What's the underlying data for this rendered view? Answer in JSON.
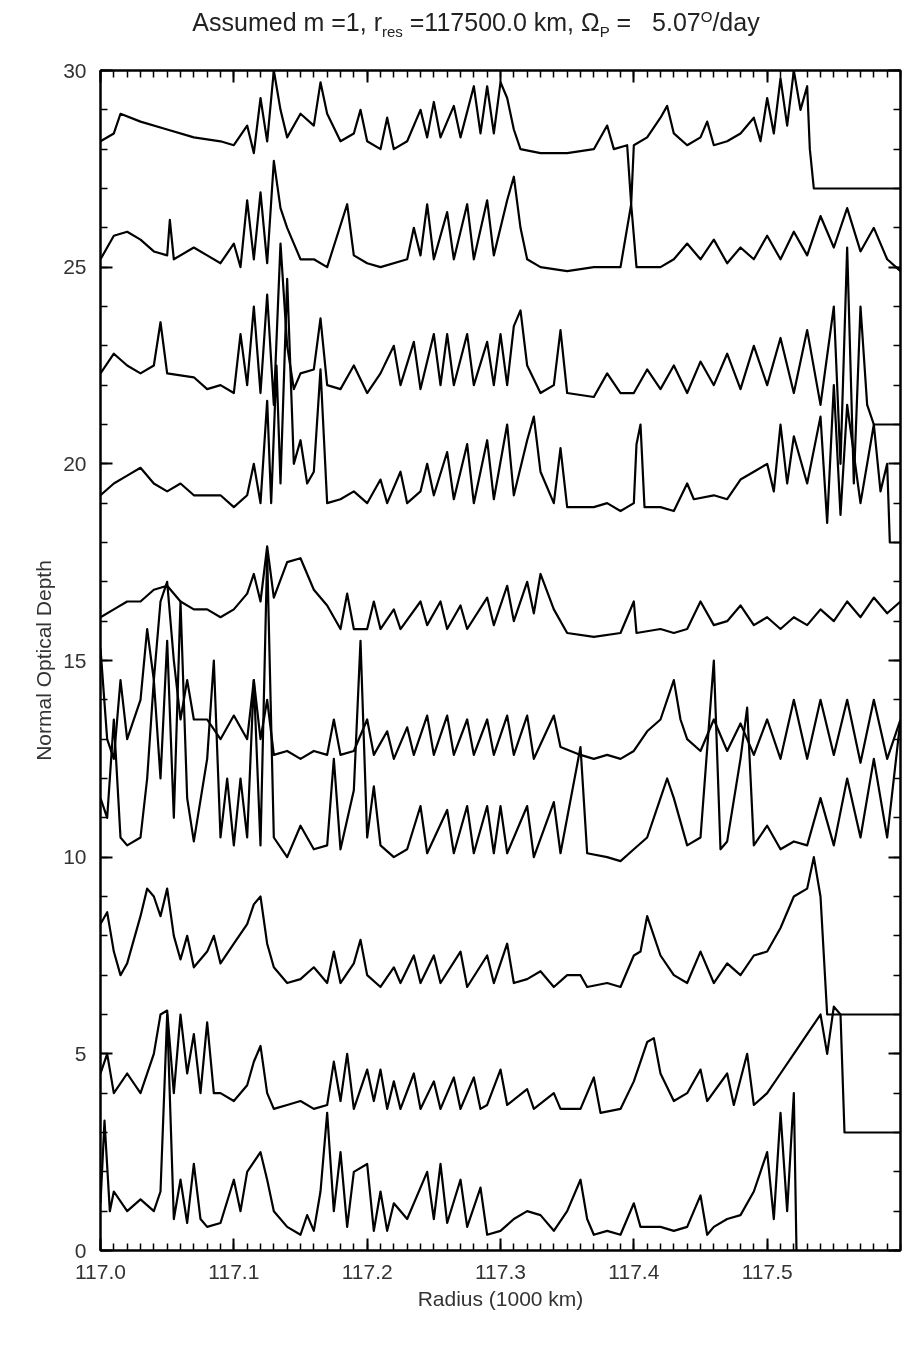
{
  "chart_data": {
    "type": "line",
    "title": "Assumed m =1, r$_{res}$ =117500.0 km, Ω$_{P}$ =   5.07$^{O}$/day",
    "xlabel": "Radius (1000 km)",
    "ylabel": "Normal Optical Depth",
    "xlim": [
      117.0,
      117.6
    ],
    "ylim": [
      0,
      30
    ],
    "xticks": [
      {
        "value": 117.0,
        "label": "117.0"
      },
      {
        "value": 117.1,
        "label": "117.1"
      },
      {
        "value": 117.2,
        "label": "117.2"
      },
      {
        "value": 117.3,
        "label": "117.3"
      },
      {
        "value": 117.4,
        "label": "117.4"
      },
      {
        "value": 117.5,
        "label": "117.5"
      }
    ],
    "yticks": [
      0,
      5,
      10,
      15,
      20,
      25,
      30
    ],
    "line_style": "solid",
    "series": [
      {
        "color": "#000000",
        "x": [
          117.0,
          117.01,
          117.015,
          117.03,
          117.05,
          117.07,
          117.09,
          117.1,
          117.11,
          117.115,
          117.12,
          117.125,
          117.13,
          117.135,
          117.14,
          117.15,
          117.16,
          117.165,
          117.17,
          117.18,
          117.19,
          117.195,
          117.2,
          117.21,
          117.215,
          117.22,
          117.23,
          117.24,
          117.245,
          117.25,
          117.255,
          117.265,
          117.27,
          117.28,
          117.285,
          117.29,
          117.295,
          117.3,
          117.305,
          117.31,
          117.315,
          117.33,
          117.35,
          117.37,
          117.38,
          117.385,
          117.395,
          117.398,
          117.4,
          117.41,
          117.42,
          117.425,
          117.43,
          117.44,
          117.45,
          117.455,
          117.46,
          117.47,
          117.48,
          117.49,
          117.495,
          117.5,
          117.505,
          117.51,
          117.515,
          117.52,
          117.525,
          117.53,
          117.532,
          117.535,
          117.6
        ],
        "values": [
          28.2,
          28.4,
          28.9,
          28.7,
          28.5,
          28.3,
          28.2,
          28.1,
          28.6,
          27.9,
          29.3,
          28.2,
          30.0,
          29.0,
          28.3,
          28.9,
          28.6,
          29.7,
          28.9,
          28.2,
          28.4,
          29.0,
          28.2,
          28.0,
          28.8,
          28.0,
          28.2,
          29.0,
          28.3,
          29.2,
          28.3,
          29.1,
          28.3,
          29.6,
          28.4,
          29.6,
          28.4,
          29.7,
          29.3,
          28.5,
          28.0,
          27.9,
          27.9,
          28.0,
          28.6,
          28.0,
          28.1,
          26.6,
          28.1,
          28.3,
          28.8,
          29.1,
          28.4,
          28.1,
          28.3,
          28.7,
          28.1,
          28.2,
          28.4,
          28.8,
          28.2,
          29.3,
          28.4,
          29.8,
          28.6,
          30.0,
          29.0,
          29.6,
          28.0,
          27.0,
          27.0
        ]
      },
      {
        "color": "#000000",
        "x": [
          117.0,
          117.01,
          117.02,
          117.03,
          117.04,
          117.05,
          117.052,
          117.055,
          117.07,
          117.08,
          117.09,
          117.1,
          117.105,
          117.11,
          117.115,
          117.12,
          117.125,
          117.13,
          117.135,
          117.14,
          117.15,
          117.16,
          117.17,
          117.185,
          117.19,
          117.2,
          117.21,
          117.23,
          117.235,
          117.24,
          117.245,
          117.25,
          117.26,
          117.265,
          117.275,
          117.28,
          117.29,
          117.295,
          117.305,
          117.31,
          117.315,
          117.32,
          117.33,
          117.35,
          117.37,
          117.39,
          117.398,
          117.402,
          117.42,
          117.43,
          117.44,
          117.45,
          117.46,
          117.47,
          117.48,
          117.49,
          117.5,
          117.51,
          117.52,
          117.53,
          117.54,
          117.55,
          117.56,
          117.57,
          117.58,
          117.59,
          117.6
        ],
        "values": [
          25.2,
          25.8,
          25.9,
          25.7,
          25.4,
          25.3,
          26.2,
          25.2,
          25.5,
          25.3,
          25.1,
          25.6,
          25.0,
          26.7,
          25.2,
          26.9,
          25.1,
          27.7,
          26.5,
          26.0,
          25.2,
          25.2,
          25.0,
          26.6,
          25.3,
          25.1,
          25.0,
          25.2,
          26.0,
          25.3,
          26.6,
          25.2,
          26.4,
          25.2,
          26.6,
          25.2,
          26.7,
          25.3,
          26.7,
          27.3,
          26.0,
          25.2,
          25.0,
          24.9,
          25.0,
          25.0,
          26.6,
          25.0,
          25.0,
          25.2,
          25.6,
          25.2,
          25.7,
          25.1,
          25.5,
          25.2,
          25.8,
          25.2,
          25.9,
          25.3,
          26.3,
          25.5,
          26.5,
          25.4,
          26.0,
          25.2,
          24.9
        ]
      },
      {
        "color": "#000000",
        "x": [
          117.0,
          117.01,
          117.02,
          117.03,
          117.04,
          117.045,
          117.05,
          117.07,
          117.08,
          117.09,
          117.1,
          117.105,
          117.11,
          117.115,
          117.12,
          117.125,
          117.13,
          117.135,
          117.14,
          117.145,
          117.15,
          117.16,
          117.165,
          117.17,
          117.18,
          117.19,
          117.2,
          117.21,
          117.22,
          117.225,
          117.235,
          117.24,
          117.25,
          117.255,
          117.26,
          117.265,
          117.275,
          117.28,
          117.29,
          117.295,
          117.3,
          117.305,
          117.31,
          117.315,
          117.32,
          117.33,
          117.34,
          117.345,
          117.35,
          117.37,
          117.38,
          117.39,
          117.4,
          117.41,
          117.42,
          117.43,
          117.44,
          117.45,
          117.46,
          117.47,
          117.48,
          117.49,
          117.5,
          117.51,
          117.52,
          117.53,
          117.54,
          117.55,
          117.555,
          117.56,
          117.565,
          117.57,
          117.575,
          117.58,
          117.6
        ],
        "values": [
          22.3,
          22.8,
          22.5,
          22.3,
          22.5,
          23.6,
          22.3,
          22.2,
          21.9,
          22.0,
          21.8,
          23.3,
          22.0,
          24.0,
          21.8,
          24.3,
          21.5,
          25.6,
          23.0,
          21.9,
          22.3,
          22.4,
          23.7,
          22.0,
          21.9,
          22.5,
          21.8,
          22.3,
          23.0,
          22.0,
          23.1,
          21.9,
          23.3,
          22.0,
          23.3,
          22.0,
          23.3,
          22.0,
          23.1,
          22.0,
          23.3,
          22.0,
          23.5,
          23.9,
          22.5,
          21.8,
          22.0,
          23.4,
          21.8,
          21.7,
          22.3,
          21.8,
          21.8,
          22.4,
          21.9,
          22.5,
          21.8,
          22.6,
          22.0,
          22.8,
          21.9,
          23.0,
          22.0,
          23.2,
          21.8,
          23.4,
          21.5,
          24.0,
          20.0,
          25.5,
          19.5,
          24.0,
          21.5,
          21.0,
          21.0
        ]
      },
      {
        "color": "#000000",
        "x": [
          117.0,
          117.01,
          117.02,
          117.03,
          117.04,
          117.05,
          117.06,
          117.07,
          117.09,
          117.1,
          117.11,
          117.115,
          117.12,
          117.125,
          117.128,
          117.132,
          117.135,
          117.14,
          117.145,
          117.15,
          117.155,
          117.16,
          117.165,
          117.17,
          117.18,
          117.19,
          117.2,
          117.21,
          117.215,
          117.225,
          117.23,
          117.24,
          117.245,
          117.25,
          117.26,
          117.265,
          117.275,
          117.28,
          117.29,
          117.295,
          117.305,
          117.31,
          117.32,
          117.325,
          117.33,
          117.34,
          117.345,
          117.35,
          117.37,
          117.38,
          117.39,
          117.4,
          117.402,
          117.405,
          117.408,
          117.42,
          117.43,
          117.44,
          117.445,
          117.46,
          117.47,
          117.48,
          117.49,
          117.5,
          117.505,
          117.51,
          117.515,
          117.52,
          117.53,
          117.54,
          117.545,
          117.55,
          117.555,
          117.56,
          117.57,
          117.58,
          117.585,
          117.59,
          117.592,
          117.6
        ],
        "values": [
          19.2,
          19.5,
          19.7,
          19.9,
          19.5,
          19.3,
          19.5,
          19.2,
          19.2,
          18.9,
          19.2,
          20.0,
          19.0,
          21.6,
          19.0,
          22.5,
          19.5,
          24.7,
          20.0,
          20.6,
          19.5,
          19.8,
          22.4,
          19.0,
          19.1,
          19.3,
          19.0,
          19.6,
          19.0,
          19.8,
          19.0,
          19.3,
          20.0,
          19.2,
          20.3,
          19.1,
          20.5,
          19.0,
          20.6,
          19.1,
          21.0,
          19.2,
          20.6,
          21.2,
          19.8,
          19.0,
          20.4,
          18.9,
          18.9,
          19.0,
          18.8,
          19.0,
          20.5,
          21.0,
          18.9,
          18.9,
          18.8,
          19.5,
          19.1,
          19.2,
          19.1,
          19.6,
          19.8,
          20.0,
          19.3,
          21.0,
          19.5,
          20.7,
          19.5,
          21.2,
          18.5,
          22.0,
          18.7,
          21.5,
          19.0,
          21.0,
          19.3,
          20.0,
          18.0,
          18.0
        ]
      },
      {
        "color": "#000000",
        "x": [
          117.0,
          117.01,
          117.02,
          117.03,
          117.04,
          117.05,
          117.06,
          117.07,
          117.08,
          117.09,
          117.1,
          117.11,
          117.115,
          117.12,
          117.125,
          117.13,
          117.14,
          117.15,
          117.16,
          117.17,
          117.18,
          117.185,
          117.19,
          117.2,
          117.205,
          117.21,
          117.22,
          117.225,
          117.24,
          117.245,
          117.255,
          117.26,
          117.27,
          117.275,
          117.29,
          117.295,
          117.305,
          117.31,
          117.32,
          117.325,
          117.33,
          117.34,
          117.35,
          117.37,
          117.39,
          117.4,
          117.402,
          117.42,
          117.43,
          117.44,
          117.45,
          117.46,
          117.47,
          117.48,
          117.49,
          117.5,
          117.51,
          117.52,
          117.53,
          117.54,
          117.55,
          117.56,
          117.57,
          117.58,
          117.59,
          117.6
        ],
        "values": [
          16.1,
          16.3,
          16.5,
          16.5,
          16.8,
          16.9,
          16.5,
          16.3,
          16.3,
          16.1,
          16.3,
          16.7,
          17.2,
          16.5,
          17.9,
          16.6,
          17.5,
          17.6,
          16.8,
          16.4,
          15.8,
          16.7,
          15.8,
          15.8,
          16.5,
          15.8,
          16.3,
          15.8,
          16.5,
          15.9,
          16.5,
          15.8,
          16.4,
          15.8,
          16.6,
          15.9,
          16.9,
          16.0,
          17.0,
          16.2,
          17.2,
          16.3,
          15.7,
          15.6,
          15.7,
          16.5,
          15.7,
          15.8,
          15.7,
          15.8,
          16.5,
          15.9,
          16.0,
          16.4,
          15.9,
          16.1,
          15.8,
          16.1,
          15.9,
          16.3,
          16.0,
          16.5,
          16.1,
          16.6,
          16.2,
          16.5
        ]
      },
      {
        "color": "#000000",
        "x": [
          117.0,
          117.005,
          117.01,
          117.015,
          117.02,
          117.03,
          117.035,
          117.04,
          117.045,
          117.05,
          117.055,
          117.06,
          117.065,
          117.07,
          117.08,
          117.09,
          117.1,
          117.11,
          117.115,
          117.12,
          117.125,
          117.13,
          117.14,
          117.15,
          117.16,
          117.17,
          117.175,
          117.18,
          117.19,
          117.2,
          117.205,
          117.215,
          117.22,
          117.23,
          117.235,
          117.245,
          117.25,
          117.26,
          117.265,
          117.275,
          117.28,
          117.29,
          117.295,
          117.305,
          117.31,
          117.32,
          117.325,
          117.34,
          117.345,
          117.36,
          117.37,
          117.38,
          117.39,
          117.4,
          117.41,
          117.42,
          117.43,
          117.435,
          117.44,
          117.45,
          117.46,
          117.47,
          117.48,
          117.49,
          117.5,
          117.51,
          117.52,
          117.53,
          117.54,
          117.55,
          117.56,
          117.57,
          117.58,
          117.59,
          117.6
        ],
        "values": [
          15.3,
          13.0,
          12.5,
          14.5,
          13.0,
          14.0,
          15.8,
          14.5,
          16.5,
          17.0,
          15.0,
          13.5,
          14.5,
          13.5,
          13.5,
          13.0,
          13.6,
          13.0,
          14.5,
          13.0,
          14.0,
          12.6,
          12.7,
          12.5,
          12.7,
          12.6,
          13.5,
          12.6,
          12.7,
          13.5,
          12.6,
          13.2,
          12.5,
          13.3,
          12.6,
          13.6,
          12.6,
          13.6,
          12.6,
          13.5,
          12.6,
          13.5,
          12.6,
          13.6,
          12.6,
          13.6,
          12.5,
          13.6,
          12.8,
          12.6,
          12.5,
          12.6,
          12.5,
          12.7,
          13.2,
          13.5,
          14.5,
          13.5,
          13.0,
          12.7,
          13.5,
          12.7,
          13.4,
          12.6,
          13.5,
          12.5,
          14.0,
          12.5,
          14.0,
          12.6,
          14.0,
          12.4,
          14.0,
          12.5,
          13.5
        ]
      },
      {
        "color": "#000000",
        "x": [
          117.0,
          117.005,
          117.01,
          117.015,
          117.02,
          117.03,
          117.035,
          117.04,
          117.045,
          117.05,
          117.055,
          117.06,
          117.065,
          117.07,
          117.08,
          117.085,
          117.09,
          117.095,
          117.1,
          117.105,
          117.11,
          117.115,
          117.12,
          117.125,
          117.13,
          117.14,
          117.15,
          117.16,
          117.17,
          117.175,
          117.18,
          117.19,
          117.195,
          117.2,
          117.205,
          117.21,
          117.22,
          117.23,
          117.24,
          117.245,
          117.26,
          117.265,
          117.275,
          117.28,
          117.29,
          117.295,
          117.3,
          117.305,
          117.32,
          117.325,
          117.34,
          117.345,
          117.36,
          117.365,
          117.38,
          117.39,
          117.4,
          117.41,
          117.42,
          117.425,
          117.43,
          117.44,
          117.45,
          117.46,
          117.465,
          117.47,
          117.48,
          117.485,
          117.49,
          117.5,
          117.51,
          117.52,
          117.53,
          117.54,
          117.55,
          117.56,
          117.57,
          117.58,
          117.59,
          117.6
        ],
        "values": [
          11.5,
          11.0,
          13.5,
          10.5,
          10.3,
          10.5,
          12.0,
          14.5,
          12.0,
          15.5,
          11.0,
          16.5,
          11.5,
          10.4,
          12.5,
          15.0,
          10.5,
          12.0,
          10.3,
          12.0,
          10.5,
          14.5,
          10.3,
          17.7,
          10.5,
          10.0,
          10.8,
          10.2,
          10.3,
          12.5,
          10.2,
          11.7,
          15.5,
          10.5,
          11.8,
          10.3,
          10.0,
          10.2,
          11.3,
          10.1,
          11.2,
          10.1,
          11.3,
          10.1,
          11.3,
          10.1,
          11.3,
          10.1,
          11.3,
          10.0,
          11.4,
          10.1,
          12.8,
          10.1,
          10.0,
          9.9,
          10.2,
          10.5,
          11.5,
          12.0,
          11.5,
          10.3,
          10.5,
          15.0,
          10.2,
          10.4,
          12.5,
          13.8,
          10.3,
          10.8,
          10.2,
          10.4,
          10.3,
          11.5,
          10.3,
          12.0,
          10.5,
          12.5,
          10.5,
          13.5
        ]
      },
      {
        "color": "#000000",
        "x": [
          117.0,
          117.005,
          117.01,
          117.015,
          117.02,
          117.03,
          117.035,
          117.04,
          117.045,
          117.05,
          117.055,
          117.06,
          117.065,
          117.07,
          117.08,
          117.085,
          117.09,
          117.1,
          117.11,
          117.115,
          117.12,
          117.125,
          117.13,
          117.14,
          117.15,
          117.16,
          117.17,
          117.175,
          117.18,
          117.19,
          117.195,
          117.2,
          117.21,
          117.22,
          117.225,
          117.235,
          117.24,
          117.25,
          117.255,
          117.27,
          117.275,
          117.29,
          117.295,
          117.305,
          117.31,
          117.32,
          117.33,
          117.34,
          117.35,
          117.36,
          117.365,
          117.38,
          117.39,
          117.4,
          117.405,
          117.41,
          117.42,
          117.43,
          117.44,
          117.45,
          117.46,
          117.47,
          117.48,
          117.49,
          117.5,
          117.51,
          117.52,
          117.53,
          117.535,
          117.54,
          117.545,
          117.55,
          117.6
        ],
        "values": [
          8.3,
          8.6,
          7.6,
          7.0,
          7.3,
          8.5,
          9.2,
          9.0,
          8.5,
          9.2,
          8.0,
          7.4,
          8.0,
          7.2,
          7.6,
          8.0,
          7.3,
          7.8,
          8.3,
          8.8,
          9.0,
          7.8,
          7.2,
          6.8,
          6.9,
          7.2,
          6.8,
          7.6,
          6.8,
          7.3,
          7.9,
          7.0,
          6.7,
          7.2,
          6.8,
          7.5,
          6.8,
          7.5,
          6.8,
          7.6,
          6.7,
          7.5,
          6.8,
          7.8,
          6.8,
          6.9,
          7.1,
          6.7,
          7.0,
          7.0,
          6.7,
          6.8,
          6.7,
          7.5,
          7.6,
          8.5,
          7.5,
          7.0,
          6.8,
          7.6,
          6.8,
          7.3,
          7.0,
          7.5,
          7.6,
          8.2,
          9.0,
          9.2,
          10.0,
          9.0,
          6.0,
          6.0,
          6.0
        ]
      },
      {
        "color": "#000000",
        "x": [
          117.0,
          117.005,
          117.01,
          117.02,
          117.03,
          117.04,
          117.045,
          117.05,
          117.055,
          117.06,
          117.065,
          117.07,
          117.075,
          117.08,
          117.085,
          117.09,
          117.1,
          117.11,
          117.115,
          117.12,
          117.125,
          117.13,
          117.14,
          117.15,
          117.16,
          117.17,
          117.175,
          117.18,
          117.185,
          117.19,
          117.2,
          117.205,
          117.21,
          117.215,
          117.22,
          117.225,
          117.235,
          117.24,
          117.25,
          117.255,
          117.265,
          117.27,
          117.28,
          117.285,
          117.29,
          117.3,
          117.305,
          117.32,
          117.325,
          117.34,
          117.345,
          117.36,
          117.37,
          117.375,
          117.39,
          117.4,
          117.41,
          117.415,
          117.42,
          117.43,
          117.44,
          117.45,
          117.455,
          117.47,
          117.475,
          117.485,
          117.49,
          117.5,
          117.51,
          117.52,
          117.53,
          117.54,
          117.545,
          117.55,
          117.555,
          117.558,
          117.6
        ],
        "values": [
          4.5,
          5.0,
          4.0,
          4.5,
          4.0,
          5.0,
          6.0,
          6.1,
          4.0,
          6.0,
          4.5,
          5.5,
          4.0,
          5.8,
          4.0,
          4.0,
          3.8,
          4.2,
          4.8,
          5.2,
          4.0,
          3.6,
          3.7,
          3.8,
          3.6,
          3.7,
          4.8,
          3.8,
          5.0,
          3.6,
          4.6,
          3.8,
          4.6,
          3.6,
          4.3,
          3.6,
          4.5,
          3.6,
          4.3,
          3.6,
          4.4,
          3.6,
          4.4,
          3.6,
          3.7,
          4.6,
          3.7,
          4.1,
          3.6,
          4.0,
          3.6,
          3.6,
          4.4,
          3.5,
          3.6,
          4.3,
          5.3,
          5.4,
          4.5,
          3.8,
          4.0,
          4.6,
          3.8,
          4.5,
          3.7,
          5.0,
          3.7,
          4.0,
          4.5,
          5.0,
          5.5,
          6.0,
          5.0,
          6.2,
          6.0,
          3.0,
          3.0
        ]
      },
      {
        "color": "#000000",
        "x": [
          117.0,
          117.003,
          117.007,
          117.01,
          117.02,
          117.03,
          117.04,
          117.045,
          117.05,
          117.055,
          117.06,
          117.065,
          117.07,
          117.075,
          117.08,
          117.09,
          117.1,
          117.105,
          117.11,
          117.12,
          117.125,
          117.13,
          117.14,
          117.15,
          117.155,
          117.16,
          117.165,
          117.17,
          117.175,
          117.18,
          117.185,
          117.19,
          117.2,
          117.205,
          117.21,
          117.215,
          117.22,
          117.23,
          117.24,
          117.245,
          117.25,
          117.255,
          117.26,
          117.27,
          117.275,
          117.285,
          117.29,
          117.3,
          117.31,
          117.32,
          117.33,
          117.34,
          117.35,
          117.36,
          117.365,
          117.37,
          117.38,
          117.39,
          117.4,
          117.405,
          117.42,
          117.43,
          117.44,
          117.45,
          117.455,
          117.46,
          117.47,
          117.48,
          117.49,
          117.5,
          117.505,
          117.51,
          117.515,
          117.52,
          117.522
        ],
        "values": [
          1.2,
          3.3,
          1.0,
          1.5,
          1.0,
          1.3,
          1.0,
          1.5,
          6.0,
          0.8,
          1.8,
          0.7,
          2.2,
          0.8,
          0.6,
          0.7,
          1.8,
          1.0,
          2.0,
          2.5,
          1.8,
          1.0,
          0.6,
          0.4,
          0.9,
          0.5,
          1.5,
          3.5,
          1.0,
          2.5,
          0.6,
          2.0,
          2.2,
          0.5,
          1.5,
          0.5,
          1.2,
          0.8,
          1.6,
          2.0,
          0.8,
          2.2,
          0.7,
          1.8,
          0.6,
          1.6,
          0.4,
          0.5,
          0.8,
          1.0,
          0.9,
          0.5,
          1.0,
          1.8,
          0.8,
          0.4,
          0.5,
          0.4,
          1.2,
          0.6,
          0.6,
          0.5,
          0.6,
          1.4,
          0.4,
          0.6,
          0.8,
          0.9,
          1.5,
          2.5,
          0.8,
          3.5,
          1.0,
          4.0,
          0.0
        ]
      }
    ]
  }
}
